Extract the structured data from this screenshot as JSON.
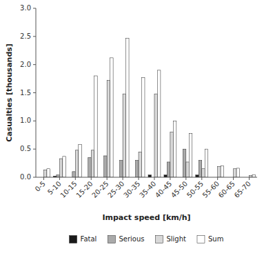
{
  "chart_data": {
    "type": "bar",
    "categories": [
      "0-5",
      "5-10",
      "10-15",
      "15-20",
      "20-25",
      "25-30",
      "30-35",
      "35-40",
      "40-45",
      "45-50",
      "50-55",
      "55-60",
      "60-65",
      "65-70"
    ],
    "series": [
      {
        "name": "Fatal",
        "color": "#1a1a1a",
        "values": [
          0.0,
          0.02,
          0.0,
          0.0,
          0.0,
          0.0,
          0.0,
          0.04,
          0.04,
          0.0,
          0.04,
          0.0,
          0.0,
          0.0
        ]
      },
      {
        "name": "Serious",
        "color": "#aaaaaa",
        "values": [
          0.0,
          0.04,
          0.1,
          0.35,
          0.38,
          0.3,
          0.3,
          0.0,
          0.27,
          0.5,
          0.3,
          0.0,
          0.0,
          0.0
        ]
      },
      {
        "name": "Slight",
        "color": "#d8d8d8",
        "values": [
          0.13,
          0.33,
          0.48,
          0.48,
          1.72,
          1.48,
          0.45,
          1.48,
          0.8,
          0.27,
          0.15,
          0.19,
          0.15,
          0.03
        ]
      },
      {
        "name": "Sum",
        "color": "#ffffff",
        "values": [
          0.15,
          0.37,
          0.58,
          1.8,
          2.12,
          2.47,
          1.77,
          1.9,
          1.0,
          0.78,
          0.5,
          0.2,
          0.16,
          0.04
        ]
      }
    ],
    "xlabel": "Impact speed [km/h]",
    "ylabel": "Casualties [thousands]",
    "ylim": [
      0,
      3.0
    ],
    "yticks": [
      {
        "value": 0.0,
        "label": "0.0"
      },
      0.5,
      {
        "value": 1.0,
        "label": "1.0"
      },
      1.5,
      {
        "value": 2.0,
        "label": "2.0"
      },
      2.5,
      {
        "value": 3.0,
        "label": "3.0"
      }
    ],
    "grid": false,
    "legend": "bottom"
  }
}
